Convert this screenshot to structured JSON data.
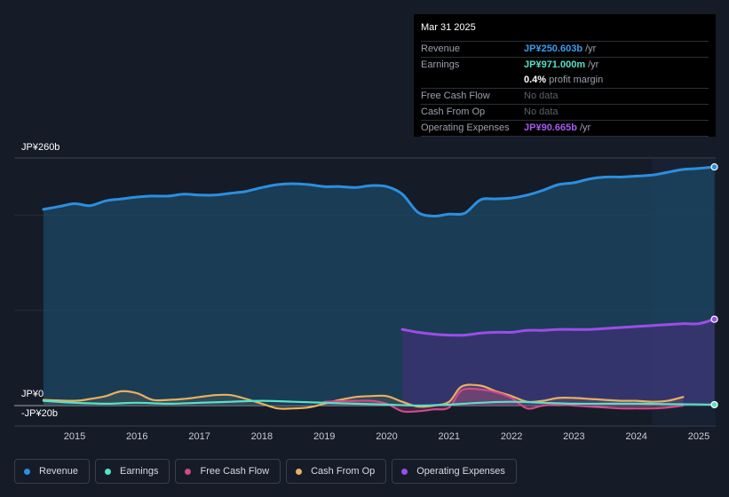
{
  "chart_data": {
    "type": "area",
    "y_axis_labels": {
      "top": "JP¥260b",
      "zero": "JP¥0",
      "bottom": "-JP¥20b"
    },
    "ylim": [
      -20,
      260
    ],
    "x_tick_labels": [
      "2015",
      "2016",
      "2017",
      "2018",
      "2019",
      "2020",
      "2021",
      "2022",
      "2023",
      "2024",
      "2025"
    ],
    "series": [
      {
        "name": "Revenue",
        "color": "#2b8fe0",
        "points": [
          [
            2014.5,
            206
          ],
          [
            2014.75,
            209
          ],
          [
            2015.0,
            212
          ],
          [
            2015.25,
            210
          ],
          [
            2015.5,
            215
          ],
          [
            2015.75,
            217
          ],
          [
            2016.0,
            219
          ],
          [
            2016.25,
            220
          ],
          [
            2016.5,
            220
          ],
          [
            2016.75,
            222
          ],
          [
            2017.0,
            221
          ],
          [
            2017.25,
            221
          ],
          [
            2017.5,
            223
          ],
          [
            2017.75,
            225
          ],
          [
            2018.0,
            229
          ],
          [
            2018.25,
            232
          ],
          [
            2018.5,
            233
          ],
          [
            2018.75,
            232
          ],
          [
            2019.0,
            230
          ],
          [
            2019.25,
            230
          ],
          [
            2019.5,
            229
          ],
          [
            2019.75,
            231
          ],
          [
            2020.0,
            230
          ],
          [
            2020.25,
            222
          ],
          [
            2020.5,
            203
          ],
          [
            2020.75,
            199
          ],
          [
            2021.0,
            201
          ],
          [
            2021.25,
            202
          ],
          [
            2021.5,
            216
          ],
          [
            2021.75,
            217
          ],
          [
            2022.0,
            218
          ],
          [
            2022.25,
            221
          ],
          [
            2022.5,
            226
          ],
          [
            2022.75,
            232
          ],
          [
            2023.0,
            234
          ],
          [
            2023.25,
            238
          ],
          [
            2023.5,
            240
          ],
          [
            2023.75,
            240
          ],
          [
            2024.0,
            241
          ],
          [
            2024.25,
            242
          ],
          [
            2024.5,
            245
          ],
          [
            2024.75,
            248
          ],
          [
            2025.0,
            249
          ],
          [
            2025.25,
            250.6
          ]
        ]
      },
      {
        "name": "Earnings",
        "color": "#58e0c8",
        "points": [
          [
            2014.5,
            5
          ],
          [
            2015.0,
            3
          ],
          [
            2015.5,
            2
          ],
          [
            2016.0,
            3
          ],
          [
            2016.5,
            2
          ],
          [
            2017.0,
            3
          ],
          [
            2017.5,
            4
          ],
          [
            2018.0,
            5
          ],
          [
            2018.5,
            4
          ],
          [
            2019.0,
            3
          ],
          [
            2019.5,
            2
          ],
          [
            2020.0,
            1
          ],
          [
            2020.5,
            0
          ],
          [
            2021.0,
            1
          ],
          [
            2021.5,
            3
          ],
          [
            2022.0,
            4
          ],
          [
            2022.5,
            3
          ],
          [
            2023.0,
            2
          ],
          [
            2023.5,
            2
          ],
          [
            2024.0,
            2
          ],
          [
            2024.5,
            1.5
          ],
          [
            2025.0,
            1.2
          ],
          [
            2025.25,
            0.97
          ]
        ]
      },
      {
        "name": "Free Cash Flow",
        "color": "#d0498a",
        "points": [
          [
            2019.0,
            4
          ],
          [
            2019.5,
            5
          ],
          [
            2019.75,
            5
          ],
          [
            2020.0,
            2
          ],
          [
            2020.25,
            -6
          ],
          [
            2020.5,
            -6
          ],
          [
            2020.75,
            -4
          ],
          [
            2021.0,
            -2
          ],
          [
            2021.2,
            16
          ],
          [
            2021.5,
            17
          ],
          [
            2021.75,
            14
          ],
          [
            2022.0,
            8
          ],
          [
            2022.25,
            -3
          ],
          [
            2022.5,
            0
          ],
          [
            2022.75,
            1
          ],
          [
            2023.0,
            0
          ],
          [
            2023.25,
            -1
          ],
          [
            2023.5,
            -2
          ],
          [
            2023.75,
            -3
          ],
          [
            2024.0,
            -3
          ],
          [
            2024.25,
            -3
          ],
          [
            2024.5,
            -2
          ],
          [
            2024.75,
            0
          ]
        ]
      },
      {
        "name": "Cash From Op",
        "color": "#e8b060",
        "points": [
          [
            2014.5,
            6
          ],
          [
            2015.0,
            5
          ],
          [
            2015.25,
            7
          ],
          [
            2015.5,
            10
          ],
          [
            2015.75,
            15
          ],
          [
            2016.0,
            13
          ],
          [
            2016.25,
            6
          ],
          [
            2016.5,
            6
          ],
          [
            2016.75,
            7
          ],
          [
            2017.0,
            9
          ],
          [
            2017.25,
            11
          ],
          [
            2017.5,
            11
          ],
          [
            2017.75,
            7
          ],
          [
            2018.0,
            2
          ],
          [
            2018.25,
            -3
          ],
          [
            2018.5,
            -3
          ],
          [
            2018.75,
            -2
          ],
          [
            2019.0,
            2
          ],
          [
            2019.25,
            6
          ],
          [
            2019.5,
            9
          ],
          [
            2019.75,
            10
          ],
          [
            2020.0,
            10
          ],
          [
            2020.25,
            4
          ],
          [
            2020.5,
            -1
          ],
          [
            2020.75,
            0
          ],
          [
            2021.0,
            4
          ],
          [
            2021.2,
            20
          ],
          [
            2021.5,
            21
          ],
          [
            2021.75,
            15
          ],
          [
            2022.0,
            10
          ],
          [
            2022.25,
            4
          ],
          [
            2022.5,
            5
          ],
          [
            2022.75,
            8
          ],
          [
            2023.0,
            8
          ],
          [
            2023.25,
            7
          ],
          [
            2023.5,
            6
          ],
          [
            2023.75,
            5
          ],
          [
            2024.0,
            5
          ],
          [
            2024.25,
            4
          ],
          [
            2024.5,
            5
          ],
          [
            2024.75,
            9
          ]
        ]
      },
      {
        "name": "Operating Expenses",
        "color": "#9b4ee8",
        "points": [
          [
            2020.25,
            80
          ],
          [
            2020.5,
            77
          ],
          [
            2020.75,
            75
          ],
          [
            2021.0,
            74
          ],
          [
            2021.25,
            74
          ],
          [
            2021.5,
            76
          ],
          [
            2021.75,
            77
          ],
          [
            2022.0,
            77
          ],
          [
            2022.25,
            79
          ],
          [
            2022.5,
            79
          ],
          [
            2022.75,
            80
          ],
          [
            2023.0,
            80
          ],
          [
            2023.25,
            80
          ],
          [
            2023.5,
            81
          ],
          [
            2023.75,
            82
          ],
          [
            2024.0,
            83
          ],
          [
            2024.25,
            84
          ],
          [
            2024.5,
            85
          ],
          [
            2024.75,
            86
          ],
          [
            2025.0,
            86
          ],
          [
            2025.25,
            90.665
          ]
        ]
      }
    ],
    "highlight_start": 2024.25
  },
  "tooltip": {
    "date": "Mar 31 2025",
    "rows": [
      {
        "label": "Revenue",
        "value": "JP¥250.603b",
        "unit": "/yr",
        "color": "#3b9cf0"
      },
      {
        "label": "Earnings",
        "value": "JP¥971.000m",
        "unit": "/yr",
        "color": "#58e0c8"
      },
      {
        "label": "",
        "value": "0.4%",
        "unit": "profit margin",
        "color": "#ffffff"
      },
      {
        "label": "Free Cash Flow",
        "value": "No data",
        "unit": "",
        "color": "#5b606b"
      },
      {
        "label": "Cash From Op",
        "value": "No data",
        "unit": "",
        "color": "#5b606b"
      },
      {
        "label": "Operating Expenses",
        "value": "JP¥90.665b",
        "unit": "/yr",
        "color": "#a55cf0"
      }
    ]
  },
  "legend": [
    {
      "label": "Revenue",
      "color": "#2b8fe0"
    },
    {
      "label": "Earnings",
      "color": "#58e0c8"
    },
    {
      "label": "Free Cash Flow",
      "color": "#d0498a"
    },
    {
      "label": "Cash From Op",
      "color": "#e8b060"
    },
    {
      "label": "Operating Expenses",
      "color": "#9b4ee8"
    }
  ]
}
